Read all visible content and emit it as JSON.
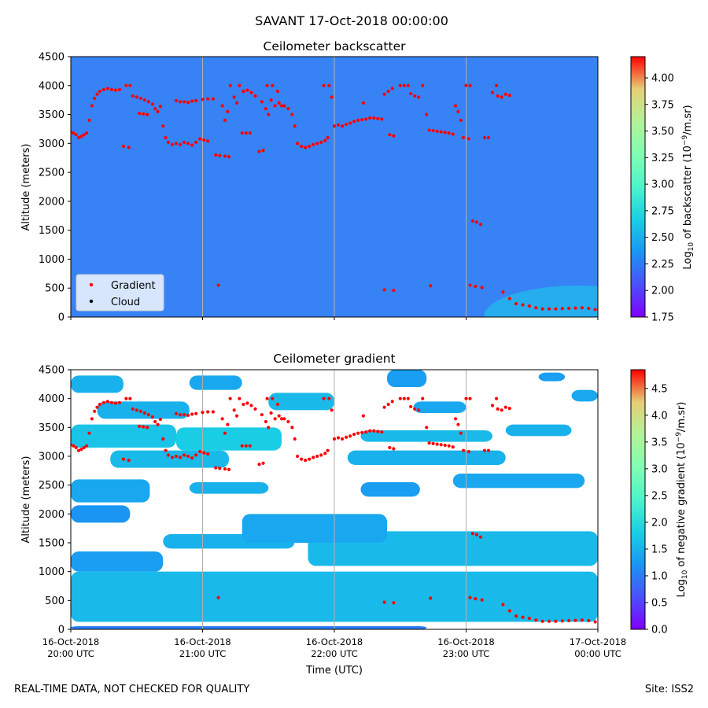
{
  "figure": {
    "suptitle": "SAVANT 17-Oct-2018 00:00:00",
    "footer_left": "REAL-TIME DATA, NOT CHECKED FOR QUALITY",
    "footer_right": "Site: ISS2"
  },
  "chart_data": [
    {
      "type": "heatmap",
      "title": "Ceilometer backscatter",
      "xlabel": "",
      "ylabel": "Altitude (meters)",
      "ylim": [
        0,
        4500
      ],
      "yticks": [
        "0",
        "500",
        "1000",
        "1500",
        "2000",
        "2500",
        "3000",
        "3500",
        "4000",
        "4500"
      ],
      "xlim_hours": [
        0,
        4
      ],
      "xticks": [
        {
          "line1": "",
          "line2": ""
        },
        {
          "line1": "",
          "line2": ""
        },
        {
          "line1": "",
          "line2": ""
        },
        {
          "line1": "",
          "line2": ""
        },
        {
          "line1": "",
          "line2": ""
        }
      ],
      "colorbar": {
        "label": "Log10 of backscatter (10^-9/m.sr)",
        "range": [
          1.75,
          4.2
        ],
        "ticks": [
          "1.75",
          "2.00",
          "2.25",
          "2.50",
          "2.75",
          "3.00",
          "3.25",
          "3.50",
          "3.75",
          "4.00"
        ]
      },
      "background_level": 2.25,
      "legend": {
        "location": "lower-left",
        "entries": [
          {
            "label": "Gradient",
            "color": "#ff0000"
          },
          {
            "label": "Cloud",
            "color": "#000000"
          }
        ]
      },
      "grid": "vertical"
    },
    {
      "type": "heatmap",
      "title": "Ceilometer gradient",
      "xlabel": "Time (UTC)",
      "ylabel": "Altitude (meters)",
      "ylim": [
        0,
        4500
      ],
      "yticks": [
        "0",
        "500",
        "1000",
        "1500",
        "2000",
        "2500",
        "3000",
        "3500",
        "4000",
        "4500"
      ],
      "xlim_hours": [
        0,
        4
      ],
      "xticks": [
        {
          "line1": "16-Oct-2018",
          "line2": "20:00 UTC"
        },
        {
          "line1": "16-Oct-2018",
          "line2": "21:00 UTC"
        },
        {
          "line1": "16-Oct-2018",
          "line2": "22:00 UTC"
        },
        {
          "line1": "16-Oct-2018",
          "line2": "23:00 UTC"
        },
        {
          "line1": "17-Oct-2018",
          "line2": "00:00 UTC"
        }
      ],
      "colorbar": {
        "label": "Log10 of negative gradient (10^-9/m.sr)",
        "range": [
          0,
          4.85
        ],
        "ticks": [
          "0.0",
          "0.5",
          "1.0",
          "1.5",
          "2.0",
          "2.5",
          "3.0",
          "3.5",
          "4.0",
          "4.5"
        ]
      },
      "bands": [
        {
          "y0": 0,
          "y1": 55,
          "t0": 0,
          "t1": 2.7,
          "v": 1.0
        },
        {
          "y0": 130,
          "y1": 1000,
          "t0": 0,
          "t1": 4,
          "v": 1.6
        },
        {
          "y0": 1000,
          "y1": 1350,
          "t0": 0,
          "t1": 0.7,
          "v": 1.3
        },
        {
          "y0": 1100,
          "y1": 1700,
          "t0": 1.8,
          "t1": 4,
          "v": 1.6
        },
        {
          "y0": 1400,
          "y1": 1650,
          "t0": 0.7,
          "t1": 1.7,
          "v": 1.5
        },
        {
          "y0": 1500,
          "y1": 2000,
          "t0": 1.3,
          "t1": 2.4,
          "v": 1.4
        },
        {
          "y0": 1850,
          "y1": 2150,
          "t0": 0,
          "t1": 0.45,
          "v": 1.2
        },
        {
          "y0": 2200,
          "y1": 2600,
          "t0": 0,
          "t1": 0.6,
          "v": 1.4
        },
        {
          "y0": 2350,
          "y1": 2550,
          "t0": 0.9,
          "t1": 1.5,
          "v": 1.5
        },
        {
          "y0": 2300,
          "y1": 2550,
          "t0": 2.2,
          "t1": 2.65,
          "v": 1.3
        },
        {
          "y0": 2450,
          "y1": 2700,
          "t0": 2.9,
          "t1": 3.9,
          "v": 1.4
        },
        {
          "y0": 2800,
          "y1": 3100,
          "t0": 0.3,
          "t1": 1.2,
          "v": 1.6
        },
        {
          "y0": 2850,
          "y1": 3100,
          "t0": 2.1,
          "t1": 3.3,
          "v": 1.5
        },
        {
          "y0": 3150,
          "y1": 3550,
          "t0": 0,
          "t1": 0.8,
          "v": 1.7
        },
        {
          "y0": 3100,
          "y1": 3500,
          "t0": 0.8,
          "t1": 1.6,
          "v": 1.8
        },
        {
          "y0": 3250,
          "y1": 3450,
          "t0": 2.2,
          "t1": 3.2,
          "v": 1.6
        },
        {
          "y0": 3350,
          "y1": 3550,
          "t0": 3.3,
          "t1": 3.8,
          "v": 1.5
        },
        {
          "y0": 3650,
          "y1": 3950,
          "t0": 0.2,
          "t1": 0.9,
          "v": 1.5
        },
        {
          "y0": 3800,
          "y1": 4100,
          "t0": 1.5,
          "t1": 2.0,
          "v": 1.6
        },
        {
          "y0": 3750,
          "y1": 3950,
          "t0": 2.6,
          "t1": 3.0,
          "v": 1.4
        },
        {
          "y0": 4100,
          "y1": 4400,
          "t0": 0,
          "t1": 0.4,
          "v": 1.5
        },
        {
          "y0": 4150,
          "y1": 4400,
          "t0": 0.9,
          "t1": 1.3,
          "v": 1.4
        },
        {
          "y0": 4200,
          "y1": 4500,
          "t0": 2.4,
          "t1": 2.7,
          "v": 1.3
        },
        {
          "y0": 3950,
          "y1": 4150,
          "t0": 3.8,
          "t1": 4.0,
          "v": 1.4
        },
        {
          "y0": 4300,
          "y1": 4450,
          "t0": 3.55,
          "t1": 3.75,
          "v": 1.3
        }
      ],
      "grid": "vertical"
    }
  ],
  "gradient_points": [
    {
      "t": 0.0,
      "a": 3200
    },
    {
      "t": 0.02,
      "a": 3180
    },
    {
      "t": 0.04,
      "a": 3150
    },
    {
      "t": 0.06,
      "a": 3100
    },
    {
      "t": 0.08,
      "a": 3120
    },
    {
      "t": 0.1,
      "a": 3150
    },
    {
      "t": 0.12,
      "a": 3180
    },
    {
      "t": 0.14,
      "a": 3400
    },
    {
      "t": 0.16,
      "a": 3650
    },
    {
      "t": 0.18,
      "a": 3780
    },
    {
      "t": 0.2,
      "a": 3850
    },
    {
      "t": 0.22,
      "a": 3900
    },
    {
      "t": 0.25,
      "a": 3930
    },
    {
      "t": 0.28,
      "a": 3950
    },
    {
      "t": 0.31,
      "a": 3930
    },
    {
      "t": 0.34,
      "a": 3920
    },
    {
      "t": 0.37,
      "a": 3930
    },
    {
      "t": 0.42,
      "a": 4000
    },
    {
      "t": 0.45,
      "a": 4000
    },
    {
      "t": 0.4,
      "a": 2950
    },
    {
      "t": 0.44,
      "a": 2930
    },
    {
      "t": 0.47,
      "a": 3820
    },
    {
      "t": 0.5,
      "a": 3800
    },
    {
      "t": 0.53,
      "a": 3780
    },
    {
      "t": 0.56,
      "a": 3750
    },
    {
      "t": 0.59,
      "a": 3720
    },
    {
      "t": 0.62,
      "a": 3680
    },
    {
      "t": 0.64,
      "a": 3600
    },
    {
      "t": 0.66,
      "a": 3550
    },
    {
      "t": 0.68,
      "a": 3640
    },
    {
      "t": 0.52,
      "a": 3520
    },
    {
      "t": 0.55,
      "a": 3510
    },
    {
      "t": 0.58,
      "a": 3500
    },
    {
      "t": 0.7,
      "a": 3300
    },
    {
      "t": 0.72,
      "a": 3100
    },
    {
      "t": 0.74,
      "a": 3020
    },
    {
      "t": 0.77,
      "a": 2980
    },
    {
      "t": 0.8,
      "a": 3000
    },
    {
      "t": 0.83,
      "a": 2980
    },
    {
      "t": 0.86,
      "a": 3020
    },
    {
      "t": 0.89,
      "a": 3000
    },
    {
      "t": 0.92,
      "a": 2970
    },
    {
      "t": 0.95,
      "a": 3020
    },
    {
      "t": 0.98,
      "a": 3080
    },
    {
      "t": 1.01,
      "a": 3060
    },
    {
      "t": 1.04,
      "a": 3040
    },
    {
      "t": 0.8,
      "a": 3740
    },
    {
      "t": 0.83,
      "a": 3720
    },
    {
      "t": 0.86,
      "a": 3720
    },
    {
      "t": 0.89,
      "a": 3710
    },
    {
      "t": 0.92,
      "a": 3730
    },
    {
      "t": 0.95,
      "a": 3740
    },
    {
      "t": 1.0,
      "a": 3760
    },
    {
      "t": 1.04,
      "a": 3770
    },
    {
      "t": 1.08,
      "a": 3770
    },
    {
      "t": 1.1,
      "a": 2800
    },
    {
      "t": 1.13,
      "a": 2790
    },
    {
      "t": 1.17,
      "a": 2780
    },
    {
      "t": 1.2,
      "a": 2770
    },
    {
      "t": 1.15,
      "a": 3650
    },
    {
      "t": 1.17,
      "a": 3400
    },
    {
      "t": 1.19,
      "a": 3550
    },
    {
      "t": 1.21,
      "a": 4000
    },
    {
      "t": 1.24,
      "a": 3800
    },
    {
      "t": 1.26,
      "a": 3700
    },
    {
      "t": 1.28,
      "a": 4000
    },
    {
      "t": 1.3,
      "a": 3180
    },
    {
      "t": 1.33,
      "a": 3180
    },
    {
      "t": 1.36,
      "a": 3180
    },
    {
      "t": 1.31,
      "a": 3900
    },
    {
      "t": 1.34,
      "a": 3920
    },
    {
      "t": 1.37,
      "a": 3880
    },
    {
      "t": 1.4,
      "a": 3820
    },
    {
      "t": 1.43,
      "a": 2860
    },
    {
      "t": 1.46,
      "a": 2880
    },
    {
      "t": 1.45,
      "a": 3720
    },
    {
      "t": 1.48,
      "a": 3600
    },
    {
      "t": 1.5,
      "a": 3500
    },
    {
      "t": 1.52,
      "a": 3750
    },
    {
      "t": 1.55,
      "a": 3650
    },
    {
      "t": 1.58,
      "a": 3700
    },
    {
      "t": 1.6,
      "a": 3650
    },
    {
      "t": 1.49,
      "a": 4000
    },
    {
      "t": 1.53,
      "a": 4000
    },
    {
      "t": 1.57,
      "a": 3900
    },
    {
      "t": 1.62,
      "a": 3650
    },
    {
      "t": 1.65,
      "a": 3600
    },
    {
      "t": 1.68,
      "a": 3500
    },
    {
      "t": 1.7,
      "a": 3300
    },
    {
      "t": 1.72,
      "a": 3000
    },
    {
      "t": 1.75,
      "a": 2950
    },
    {
      "t": 1.78,
      "a": 2930
    },
    {
      "t": 1.81,
      "a": 2950
    },
    {
      "t": 1.84,
      "a": 2980
    },
    {
      "t": 1.87,
      "a": 3000
    },
    {
      "t": 1.9,
      "a": 3020
    },
    {
      "t": 1.93,
      "a": 3050
    },
    {
      "t": 1.95,
      "a": 3100
    },
    {
      "t": 1.92,
      "a": 4000
    },
    {
      "t": 1.96,
      "a": 4000
    },
    {
      "t": 1.98,
      "a": 3800
    },
    {
      "t": 2.0,
      "a": 3300
    },
    {
      "t": 2.03,
      "a": 3320
    },
    {
      "t": 2.06,
      "a": 3300
    },
    {
      "t": 2.09,
      "a": 3330
    },
    {
      "t": 2.12,
      "a": 3350
    },
    {
      "t": 2.15,
      "a": 3380
    },
    {
      "t": 2.18,
      "a": 3400
    },
    {
      "t": 2.21,
      "a": 3410
    },
    {
      "t": 2.24,
      "a": 3420
    },
    {
      "t": 2.27,
      "a": 3440
    },
    {
      "t": 2.3,
      "a": 3440
    },
    {
      "t": 2.33,
      "a": 3430
    },
    {
      "t": 2.36,
      "a": 3420
    },
    {
      "t": 2.22,
      "a": 3700
    },
    {
      "t": 2.38,
      "a": 3850
    },
    {
      "t": 2.41,
      "a": 3900
    },
    {
      "t": 2.44,
      "a": 3950
    },
    {
      "t": 2.42,
      "a": 3150
    },
    {
      "t": 2.45,
      "a": 3130
    },
    {
      "t": 2.5,
      "a": 4000
    },
    {
      "t": 2.53,
      "a": 4000
    },
    {
      "t": 2.56,
      "a": 4000
    },
    {
      "t": 2.58,
      "a": 3860
    },
    {
      "t": 2.61,
      "a": 3820
    },
    {
      "t": 2.64,
      "a": 3800
    },
    {
      "t": 2.67,
      "a": 4000
    },
    {
      "t": 2.7,
      "a": 3500
    },
    {
      "t": 2.72,
      "a": 3230
    },
    {
      "t": 2.75,
      "a": 3220
    },
    {
      "t": 2.78,
      "a": 3210
    },
    {
      "t": 2.81,
      "a": 3200
    },
    {
      "t": 2.84,
      "a": 3190
    },
    {
      "t": 2.87,
      "a": 3180
    },
    {
      "t": 2.9,
      "a": 3160
    },
    {
      "t": 2.92,
      "a": 3650
    },
    {
      "t": 2.94,
      "a": 3550
    },
    {
      "t": 2.96,
      "a": 3400
    },
    {
      "t": 2.98,
      "a": 3100
    },
    {
      "t": 3.0,
      "a": 4000
    },
    {
      "t": 3.03,
      "a": 4000
    },
    {
      "t": 3.02,
      "a": 3080
    },
    {
      "t": 3.05,
      "a": 1660
    },
    {
      "t": 3.08,
      "a": 1640
    },
    {
      "t": 3.11,
      "a": 1600
    },
    {
      "t": 3.14,
      "a": 3100
    },
    {
      "t": 3.17,
      "a": 3100
    },
    {
      "t": 3.2,
      "a": 3880
    },
    {
      "t": 3.24,
      "a": 3820
    },
    {
      "t": 3.27,
      "a": 3800
    },
    {
      "t": 3.3,
      "a": 3850
    },
    {
      "t": 3.23,
      "a": 4000
    },
    {
      "t": 3.33,
      "a": 3830
    },
    {
      "t": 1.12,
      "a": 550
    },
    {
      "t": 2.38,
      "a": 470
    },
    {
      "t": 2.45,
      "a": 460
    },
    {
      "t": 2.73,
      "a": 540
    },
    {
      "t": 3.03,
      "a": 550
    },
    {
      "t": 3.07,
      "a": 530
    },
    {
      "t": 3.12,
      "a": 510
    },
    {
      "t": 3.28,
      "a": 430
    },
    {
      "t": 3.33,
      "a": 320
    },
    {
      "t": 3.38,
      "a": 230
    },
    {
      "t": 3.43,
      "a": 210
    },
    {
      "t": 3.48,
      "a": 190
    },
    {
      "t": 3.53,
      "a": 160
    },
    {
      "t": 3.58,
      "a": 140
    },
    {
      "t": 3.63,
      "a": 140
    },
    {
      "t": 3.68,
      "a": 140
    },
    {
      "t": 3.73,
      "a": 145
    },
    {
      "t": 3.78,
      "a": 150
    },
    {
      "t": 3.83,
      "a": 155
    },
    {
      "t": 3.88,
      "a": 160
    },
    {
      "t": 3.93,
      "a": 150
    },
    {
      "t": 3.98,
      "a": 130
    }
  ]
}
